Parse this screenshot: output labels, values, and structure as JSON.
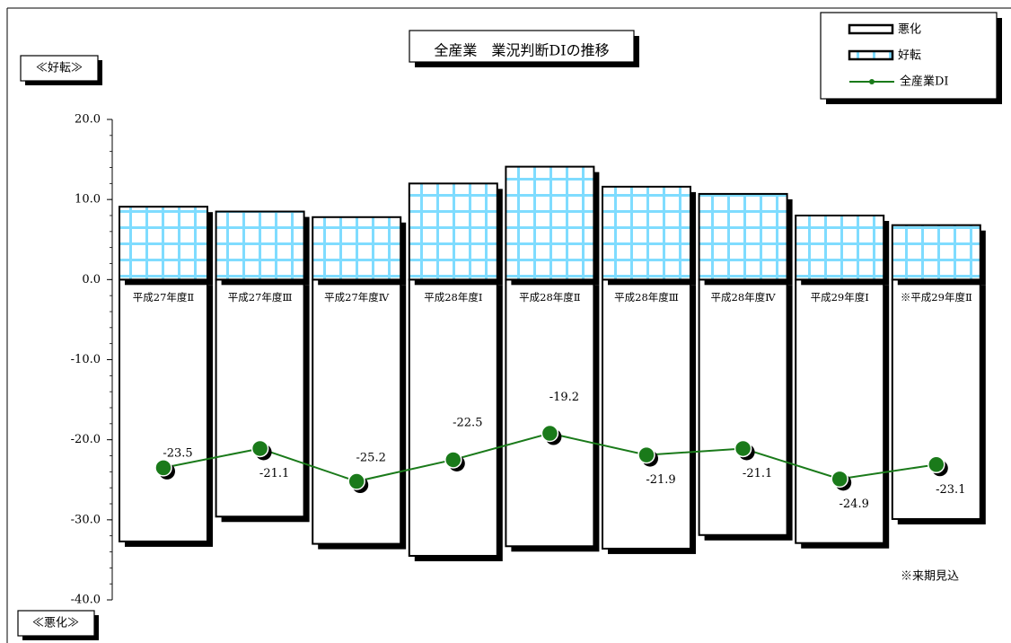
{
  "chart_data": {
    "type": "bar",
    "title": "全産業　業況判断DIの推移",
    "categories": [
      "平成27年度Ⅱ",
      "平成27年度Ⅲ",
      "平成27年度Ⅳ",
      "平成28年度Ⅰ",
      "平成28年度Ⅱ",
      "平成28年度Ⅲ",
      "平成28年度Ⅳ",
      "平成29年度Ⅰ",
      "※平成29年度Ⅱ"
    ],
    "series": [
      {
        "name": "悪化",
        "kind": "bar",
        "values": [
          -32.7,
          -29.6,
          -33.0,
          -34.5,
          -33.3,
          -33.6,
          -31.9,
          -32.9,
          -29.9
        ]
      },
      {
        "name": "好転",
        "kind": "bar",
        "values": [
          9.1,
          8.5,
          7.8,
          12.0,
          14.1,
          11.6,
          10.7,
          8.0,
          6.8
        ]
      },
      {
        "name": "全産業DI",
        "kind": "line",
        "values": [
          -23.5,
          -21.1,
          -25.2,
          -22.5,
          -19.2,
          -21.9,
          -21.1,
          -24.9,
          -23.1
        ]
      }
    ],
    "data_labels": [
      "-23.5",
      "-21.1",
      "-25.2",
      "-22.5",
      "-19.2",
      "-21.9",
      "-21.1",
      "-24.9",
      "-23.1"
    ],
    "y_ticks": [
      "20.0",
      "10.0",
      "0.0",
      "-10.0",
      "-20.0",
      "-30.0",
      "-40.0"
    ],
    "ylim": [
      -40,
      20
    ],
    "label_top": "≪好転≫",
    "label_bottom": "≪悪化≫",
    "note": "※来期見込",
    "legend_position": "top-right",
    "colors": {
      "grid_fill": "#7fdcff",
      "line": "#1a7a1a",
      "marker": "#1a7a1a",
      "bar_border": "#000000"
    }
  }
}
